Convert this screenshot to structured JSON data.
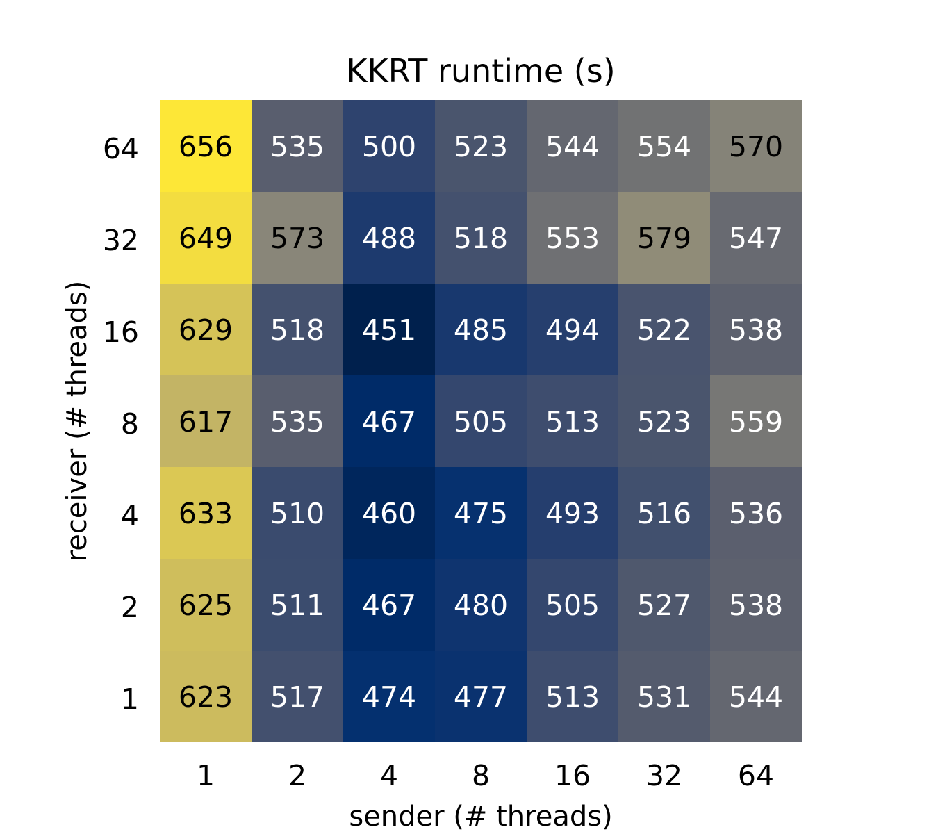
{
  "chart_data": {
    "type": "heatmap",
    "title": "KKRT runtime (s)",
    "xlabel": "sender (# threads)",
    "ylabel": "receiver (# threads)",
    "x_categories": [
      "1",
      "2",
      "4",
      "8",
      "16",
      "32",
      "64"
    ],
    "y_categories": [
      "64",
      "32",
      "16",
      "8",
      "4",
      "2",
      "1"
    ],
    "values": [
      [
        656,
        535,
        500,
        523,
        544,
        554,
        570
      ],
      [
        649,
        573,
        488,
        518,
        553,
        579,
        547
      ],
      [
        629,
        518,
        451,
        485,
        494,
        522,
        538
      ],
      [
        617,
        535,
        467,
        505,
        513,
        523,
        559
      ],
      [
        633,
        510,
        460,
        475,
        493,
        516,
        536
      ],
      [
        625,
        511,
        467,
        480,
        505,
        527,
        538
      ],
      [
        623,
        517,
        474,
        477,
        513,
        531,
        544
      ]
    ],
    "colormap": "cividis",
    "color_range": [
      451,
      656
    ],
    "colorbar": false,
    "annotations": true
  }
}
